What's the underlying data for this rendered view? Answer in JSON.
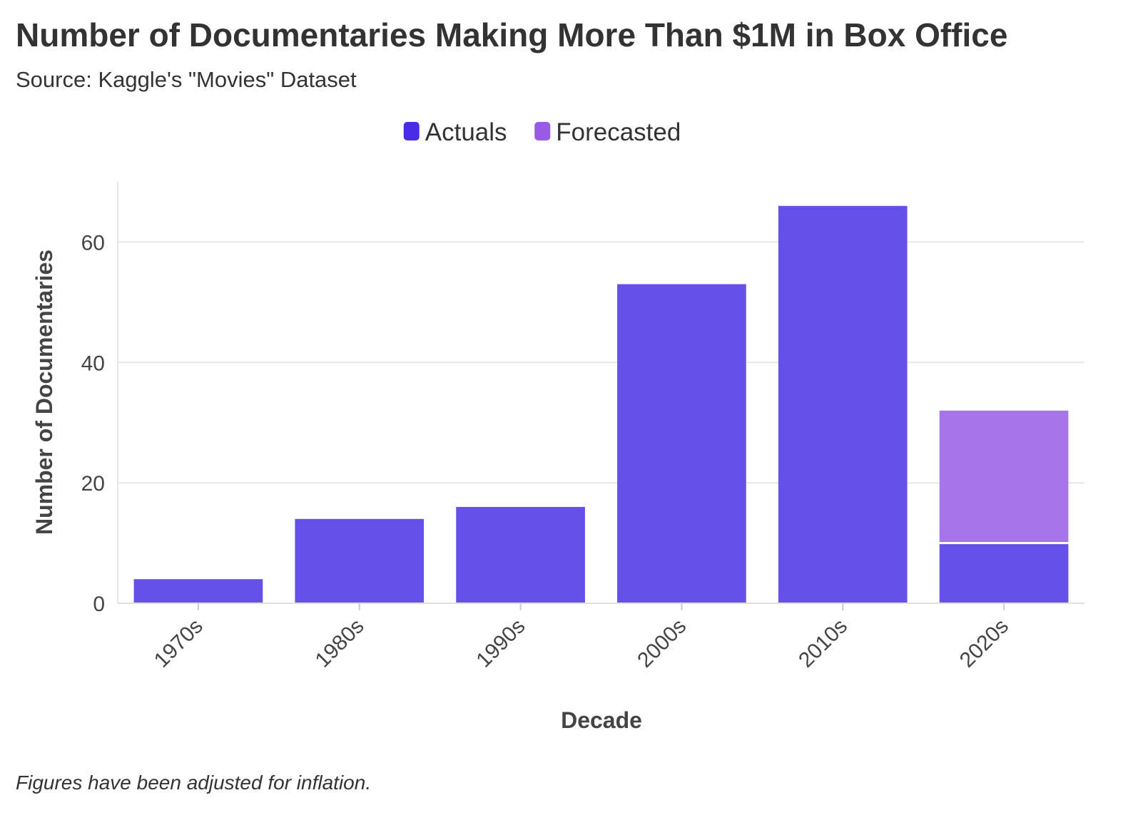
{
  "chart_data": {
    "type": "bar",
    "stacked": true,
    "title": "Number of Documentaries Making More Than $1M in Box Office",
    "subtitle": "Source: Kaggle's \"Movies\" Dataset",
    "footnote": "Figures have been adjusted for inflation.",
    "xlabel": "Decade",
    "ylabel": "Number of Documentaries",
    "categories": [
      "1970s",
      "1980s",
      "1990s",
      "2000s",
      "2010s",
      "2020s"
    ],
    "series": [
      {
        "name": "Actuals",
        "color": "#6650ea",
        "legend_color": "#4a2ce6",
        "values": [
          4,
          14,
          16,
          53,
          66,
          10
        ]
      },
      {
        "name": "Forecasted",
        "color": "#a774ea",
        "legend_color": "#9a5ae8",
        "values": [
          0,
          0,
          0,
          0,
          0,
          22
        ]
      }
    ],
    "ylim": [
      0,
      70
    ],
    "yticks": [
      0,
      20,
      40,
      60
    ],
    "grid": true,
    "legend_position": "top-center"
  }
}
